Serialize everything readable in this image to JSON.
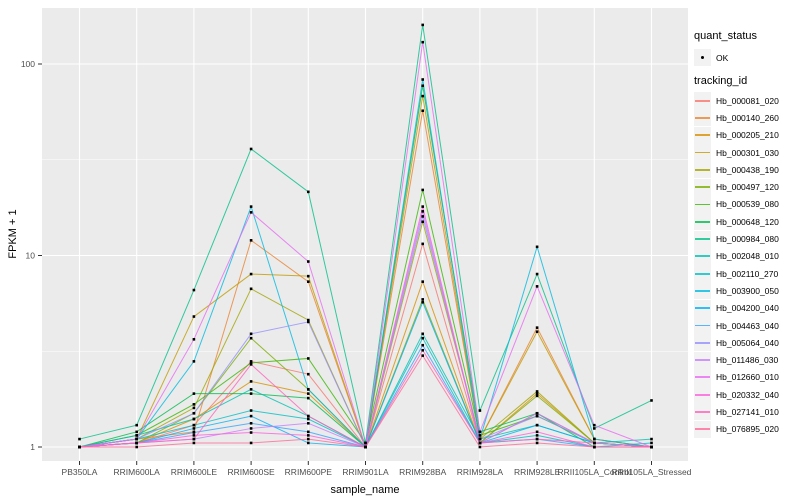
{
  "chart_data": {
    "type": "line",
    "title": "",
    "xlabel": "sample_name",
    "ylabel": "FPKM + 1",
    "y_scale": "log10",
    "y_ticks": [
      1,
      10,
      100
    ],
    "y_tick_labels": [
      "1",
      "10",
      "100"
    ],
    "y_minor_ticks": [
      3.1623,
      31.623
    ],
    "ylim": [
      0.78,
      200
    ],
    "grid": true,
    "panel_bg": "#EBEBEB",
    "grid_color": "#FFFFFF",
    "tick_text_color": "#4D4D4D",
    "point_color": "#000000",
    "legend": {
      "position": "right",
      "quant_status_title": "quant_status",
      "quant_status_items": [
        "OK"
      ],
      "tracking_id_title": "tracking_id"
    },
    "categories": [
      "PB350LA",
      "RRIM600LA",
      "RRIM600LE",
      "RRIM600SE",
      "RRIM600PE",
      "RRIM901LA",
      "RRIM928BA",
      "RRIM928LA",
      "RRIM928LE",
      "RRII105LA_Control",
      "RRII105LA_Stressed"
    ],
    "series": [
      {
        "name": "Hb_000081_020",
        "color": "#F8766D",
        "values": [
          1.0,
          1.05,
          1.3,
          2.8,
          2.4,
          1.0,
          11.5,
          1.05,
          1.5,
          1.05,
          1.0
        ]
      },
      {
        "name": "Hb_000140_260",
        "color": "#EA8331",
        "values": [
          1.0,
          1.1,
          1.2,
          12.0,
          7.3,
          1.0,
          57.0,
          1.1,
          4.2,
          1.1,
          1.0
        ]
      },
      {
        "name": "Hb_000205_210",
        "color": "#D89000",
        "values": [
          1.0,
          1.05,
          1.4,
          2.2,
          1.9,
          1.0,
          7.3,
          1.05,
          1.9,
          1.05,
          1.0
        ]
      },
      {
        "name": "Hb_000301_030",
        "color": "#C09B00",
        "values": [
          1.0,
          1.1,
          4.8,
          8.0,
          7.8,
          1.0,
          68.0,
          1.1,
          4.0,
          1.1,
          1.0
        ]
      },
      {
        "name": "Hb_000438_190",
        "color": "#A3A500",
        "values": [
          1.0,
          1.1,
          1.6,
          6.7,
          4.6,
          1.0,
          15.0,
          1.1,
          1.95,
          1.05,
          1.0
        ]
      },
      {
        "name": "Hb_000497_120",
        "color": "#7CAE00",
        "values": [
          1.0,
          1.05,
          1.5,
          3.7,
          2.0,
          1.0,
          5.9,
          1.05,
          1.85,
          1.05,
          1.0
        ]
      },
      {
        "name": "Hb_000539_080",
        "color": "#39B600",
        "values": [
          1.0,
          1.15,
          1.67,
          2.75,
          2.9,
          1.05,
          22.0,
          1.15,
          1.45,
          1.05,
          1.0
        ]
      },
      {
        "name": "Hb_000648_120",
        "color": "#00BB4E",
        "values": [
          1.0,
          1.2,
          1.9,
          1.9,
          1.8,
          1.0,
          77.0,
          1.2,
          1.5,
          1.0,
          1.0
        ]
      },
      {
        "name": "Hb_000984_080",
        "color": "#00C087",
        "values": [
          1.1,
          1.3,
          6.6,
          36.0,
          21.5,
          1.05,
          160.0,
          1.55,
          8.0,
          1.25,
          1.75
        ]
      },
      {
        "name": "Hb_002048_010",
        "color": "#00C0B2",
        "values": [
          1.0,
          1.15,
          1.4,
          2.0,
          1.45,
          1.0,
          3.9,
          1.1,
          1.3,
          1.05,
          1.1
        ]
      },
      {
        "name": "Hb_002110_270",
        "color": "#00BFC4",
        "values": [
          1.0,
          1.1,
          1.3,
          1.55,
          1.4,
          1.0,
          3.7,
          1.05,
          1.15,
          1.0,
          1.05
        ]
      },
      {
        "name": "Hb_003900_050",
        "color": "#00BAE0",
        "values": [
          1.0,
          1.1,
          2.8,
          18.0,
          2.0,
          1.0,
          83.0,
          1.1,
          11.1,
          1.1,
          1.0
        ]
      },
      {
        "name": "Hb_004200_040",
        "color": "#00B0F6",
        "values": [
          1.0,
          1.05,
          1.25,
          1.45,
          1.05,
          1.0,
          5.7,
          1.05,
          1.3,
          1.05,
          1.0
        ]
      },
      {
        "name": "Hb_004463_040",
        "color": "#35A2FF",
        "values": [
          1.0,
          1.05,
          1.19,
          1.33,
          1.2,
          1.0,
          3.4,
          1.05,
          1.1,
          1.0,
          1.0
        ]
      },
      {
        "name": "Hb_005064_040",
        "color": "#9590FF",
        "values": [
          1.0,
          1.1,
          1.5,
          3.9,
          4.5,
          1.0,
          16.0,
          1.1,
          1.45,
          1.05,
          1.0
        ]
      },
      {
        "name": "Hb_011486_030",
        "color": "#C77CFF",
        "values": [
          1.0,
          1.05,
          1.1,
          1.25,
          1.33,
          1.0,
          17.0,
          1.05,
          1.5,
          1.05,
          1.0
        ]
      },
      {
        "name": "Hb_012660_010",
        "color": "#E76BF3",
        "values": [
          1.0,
          1.1,
          3.65,
          16.8,
          9.3,
          1.0,
          130.0,
          1.2,
          6.9,
          1.3,
          1.0
        ]
      },
      {
        "name": "Hb_020332_040",
        "color": "#FA62DB",
        "values": [
          1.0,
          1.05,
          1.15,
          1.19,
          1.15,
          1.0,
          18.0,
          1.05,
          1.2,
          1.0,
          1.0
        ]
      },
      {
        "name": "Hb_027141_010",
        "color": "#FF62BC",
        "values": [
          1.0,
          1.05,
          1.1,
          2.7,
          1.45,
          1.0,
          3.2,
          1.05,
          1.1,
          1.05,
          1.0
        ]
      },
      {
        "name": "Hb_076895_020",
        "color": "#FF6A98",
        "values": [
          1.0,
          1.0,
          1.05,
          1.05,
          1.1,
          1.0,
          3.0,
          1.0,
          1.05,
          1.0,
          1.0
        ]
      }
    ]
  }
}
